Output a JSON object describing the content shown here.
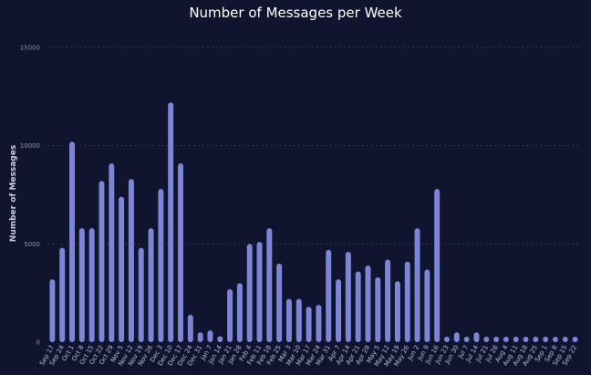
{
  "chart_data": {
    "type": "bar",
    "title": "Number of Messages per Week",
    "ylabel": "Number of Messages",
    "xlabel": "",
    "ylim": [
      0,
      15000
    ],
    "yticks": [
      0,
      5000,
      10000,
      15000
    ],
    "grid": true,
    "bar_color": "#7b86d6",
    "background": "#10142e",
    "categories": [
      "Sep 17",
      "Sep 24",
      "Oct 1",
      "Oct 8",
      "Oct 15",
      "Oct 22",
      "Oct 29",
      "Nov 5",
      "Nov 12",
      "Nov 19",
      "Nov 26",
      "Dec 3",
      "Dec 10",
      "Dec 17",
      "Dec 24",
      "Dec 31",
      "Jan 7",
      "Jan 14",
      "Jan 21",
      "Jan 28",
      "Feb 4",
      "Feb 11",
      "Feb 18",
      "Feb 25",
      "Mar 3",
      "Mar 10",
      "Mar 17",
      "Mar 24",
      "Mar 31",
      "Apr 7",
      "Apr 14",
      "Apr 21",
      "Apr 28",
      "May 5",
      "May 12",
      "May 19",
      "May 26",
      "Jun 2",
      "Jun 9",
      "Jun 16",
      "Jun 23",
      "Jun 30",
      "Jul 7",
      "Jul 14",
      "Jul 21",
      "Jul 28",
      "Aug 4",
      "Aug 11",
      "Aug 18",
      "Aug 25",
      "Sep 1",
      "Sep 8",
      "Sep 15",
      "Sep 22"
    ],
    "values": [
      3200,
      4800,
      10200,
      5800,
      5800,
      8200,
      9100,
      7400,
      8300,
      4800,
      5800,
      7800,
      12200,
      9100,
      1400,
      500,
      600,
      300,
      2700,
      3000,
      5000,
      5100,
      5800,
      4000,
      2200,
      2200,
      1800,
      1900,
      4700,
      3200,
      4600,
      3600,
      3900,
      3300,
      4200,
      3100,
      4100,
      5800,
      3700,
      7800,
      50,
      500,
      100,
      500,
      150,
      50,
      50,
      50,
      50,
      50,
      250,
      80,
      120,
      250
    ]
  }
}
